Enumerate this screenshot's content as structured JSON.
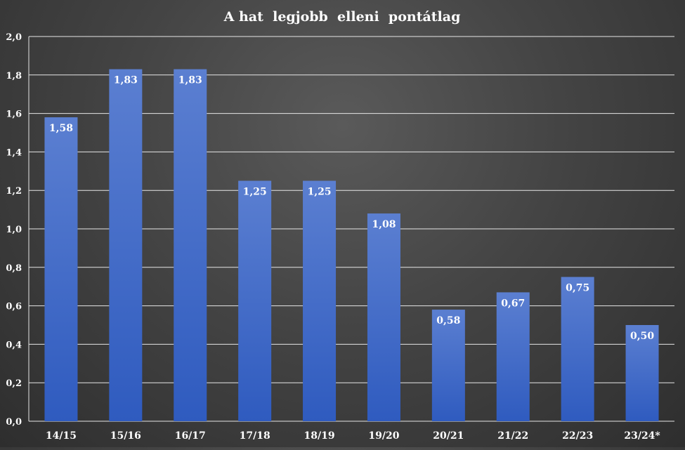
{
  "chart_data": {
    "type": "bar",
    "title": "A hat  legjobb  elleni  pontátlag",
    "xlabel": "",
    "ylabel": "",
    "categories": [
      "14/15",
      "15/16",
      "16/17",
      "17/18",
      "18/19",
      "19/20",
      "20/21",
      "21/22",
      "22/23",
      "23/24*"
    ],
    "values": [
      1.58,
      1.83,
      1.83,
      1.25,
      1.25,
      1.08,
      0.58,
      0.67,
      0.75,
      0.5
    ],
    "data_labels": [
      "1,58",
      "1,83",
      "1,83",
      "1,25",
      "1,25",
      "1,08",
      "0,58",
      "0,67",
      "0,75",
      "0,50"
    ],
    "yticks": [
      0,
      0.2,
      0.4,
      0.6,
      0.8,
      1.0,
      1.2,
      1.4,
      1.6,
      1.8,
      2.0
    ],
    "ytick_labels": [
      "0,0",
      "0,2",
      "0,4",
      "0,6",
      "0,8",
      "1,0",
      "1,2",
      "1,4",
      "1,6",
      "1,8",
      "2,0"
    ],
    "ylim": [
      0,
      2.0
    ],
    "grid": true,
    "legend": "none",
    "colors": {
      "bar_top": "#5b7fd1",
      "bar_bottom": "#2f5bbf",
      "grid": "#e6e6e6",
      "text": "#ffffff"
    }
  }
}
